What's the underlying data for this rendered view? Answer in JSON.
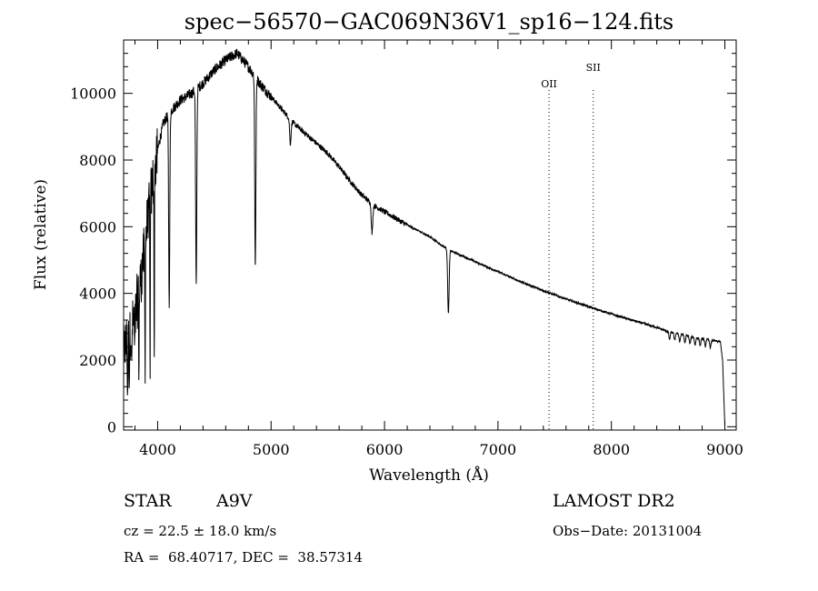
{
  "chart_data": {
    "type": "line",
    "title": "spec−56570−GAC069N36V1_sp16−124.fits",
    "xlabel": "Wavelength (Å)",
    "ylabel": "Flux (relative)",
    "xlim": [
      3700,
      9100
    ],
    "ylim": [
      -100,
      11600
    ],
    "xticks": [
      4000,
      5000,
      6000,
      7000,
      8000,
      9000
    ],
    "xtick_labels": [
      "4000",
      "5000",
      "6000",
      "7000",
      "8000",
      "9000"
    ],
    "yticks": [
      0,
      2000,
      4000,
      6000,
      8000,
      10000
    ],
    "ytick_labels": [
      "0",
      "2000",
      "4000",
      "6000",
      "8000",
      "10000"
    ],
    "grid": false,
    "legend": "none",
    "continuum": {
      "x": [
        3700,
        3750,
        3800,
        3850,
        3900,
        3950,
        4000,
        4050,
        4100,
        4200,
        4300,
        4400,
        4500,
        4600,
        4700,
        4800,
        4900,
        5000,
        5100,
        5200,
        5300,
        5400,
        5500,
        5600,
        5700,
        5800,
        5900,
        6000,
        6200,
        6400,
        6500,
        6600,
        6800,
        7000,
        7200,
        7400,
        7600,
        7800,
        8000,
        8200,
        8400,
        8500,
        8600,
        8700,
        8800,
        8900,
        8960,
        8980,
        9000
      ],
      "y": [
        2200,
        2700,
        3300,
        4400,
        5800,
        7200,
        8300,
        9100,
        9400,
        9800,
        10000,
        10300,
        10700,
        11000,
        11200,
        10800,
        10300,
        9900,
        9500,
        9100,
        8800,
        8500,
        8200,
        7800,
        7350,
        6950,
        6650,
        6450,
        6050,
        5700,
        5450,
        5250,
        4950,
        4650,
        4350,
        4080,
        3830,
        3600,
        3380,
        3180,
        2980,
        2850,
        2780,
        2700,
        2640,
        2580,
        2550,
        2000,
        0
      ]
    },
    "absorption_lines": [
      {
        "x": 3735,
        "y": 800
      },
      {
        "x": 3750,
        "y": 1300
      },
      {
        "x": 3771,
        "y": 1500
      },
      {
        "x": 3798,
        "y": 2000
      },
      {
        "x": 3835,
        "y": 1600
      },
      {
        "x": 3889,
        "y": 1500
      },
      {
        "x": 3933,
        "y": 1500
      },
      {
        "x": 3970,
        "y": 1400
      },
      {
        "x": 4102,
        "y": 3700
      },
      {
        "x": 4340,
        "y": 4200
      },
      {
        "x": 4861,
        "y": 4800
      },
      {
        "x": 5170,
        "y": 8500
      },
      {
        "x": 5890,
        "y": 5800
      },
      {
        "x": 6563,
        "y": 3400
      }
    ],
    "reference_lines": [
      {
        "label": "OII",
        "x": 7450
      },
      {
        "label": "SII",
        "x": 7840
      }
    ],
    "annotations": [
      "OII",
      "SII"
    ]
  },
  "info": {
    "object_class": "STAR",
    "subclass": "A9V",
    "survey": "LAMOST DR2",
    "redshift": "cz = 22.5 ± 18.0 km/s",
    "obs_date": "Obs−Date: 20131004",
    "coords": "RA =  68.40717, DEC =  38.57314"
  }
}
